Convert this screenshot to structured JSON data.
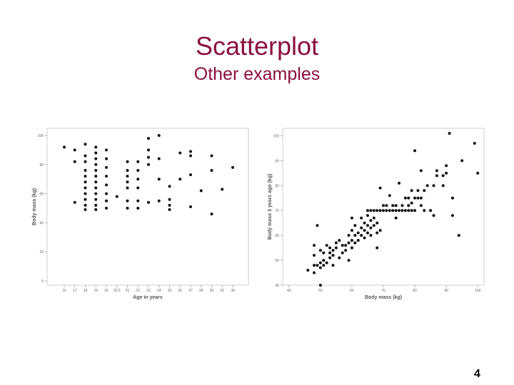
{
  "slide": {
    "title": "Scatterplot",
    "subtitle": "Other examples",
    "page_number": "4",
    "title_color": "#8b0f3e"
  },
  "chart_data": [
    {
      "type": "scatter",
      "title": "",
      "xlabel": "Age in years",
      "ylabel": "Body mass (kg)",
      "x_categories": [
        "16",
        "17",
        "18",
        "19",
        "20",
        "20.5",
        "21",
        "22",
        "23",
        "24",
        "25",
        "26",
        "27",
        "28",
        "30",
        "32",
        "38"
      ],
      "y_ticks": [
        "0",
        "20",
        "40",
        "60",
        "80",
        "100"
      ],
      "ylim": [
        0,
        100
      ],
      "grid": false,
      "points": [
        [
          "16",
          92
        ],
        [
          "17",
          90
        ],
        [
          "17",
          82
        ],
        [
          "17",
          54
        ],
        [
          "18",
          94
        ],
        [
          "18",
          86
        ],
        [
          "18",
          82
        ],
        [
          "18",
          76
        ],
        [
          "18",
          72
        ],
        [
          "18",
          68
        ],
        [
          "18",
          64
        ],
        [
          "18",
          60
        ],
        [
          "18",
          56
        ],
        [
          "18",
          52
        ],
        [
          "18",
          49
        ],
        [
          "19",
          92
        ],
        [
          "19",
          88
        ],
        [
          "19",
          84
        ],
        [
          "19",
          80
        ],
        [
          "19",
          76
        ],
        [
          "19",
          72
        ],
        [
          "19",
          68
        ],
        [
          "19",
          64
        ],
        [
          "19",
          60
        ],
        [
          "19",
          56
        ],
        [
          "19",
          52
        ],
        [
          "19",
          49
        ],
        [
          "20",
          90
        ],
        [
          "20",
          84
        ],
        [
          "20",
          78
        ],
        [
          "20",
          72
        ],
        [
          "20",
          66
        ],
        [
          "20",
          60
        ],
        [
          "20",
          55
        ],
        [
          "20",
          50
        ],
        [
          "20.5",
          58
        ],
        [
          "21",
          82
        ],
        [
          "21",
          76
        ],
        [
          "21",
          72
        ],
        [
          "21",
          68
        ],
        [
          "21",
          64
        ],
        [
          "21",
          55
        ],
        [
          "21",
          50
        ],
        [
          "22",
          82
        ],
        [
          "22",
          76
        ],
        [
          "22",
          70
        ],
        [
          "22",
          64
        ],
        [
          "22",
          55
        ],
        [
          "22",
          50
        ],
        [
          "23",
          98
        ],
        [
          "23",
          90
        ],
        [
          "23",
          85
        ],
        [
          "23",
          80
        ],
        [
          "23",
          54
        ],
        [
          "24",
          100
        ],
        [
          "24",
          84
        ],
        [
          "24",
          70
        ],
        [
          "24",
          55
        ],
        [
          "25",
          65
        ],
        [
          "25",
          56
        ],
        [
          "25",
          52
        ],
        [
          "25",
          49
        ],
        [
          "26",
          88
        ],
        [
          "26",
          70
        ],
        [
          "27",
          89
        ],
        [
          "27",
          86
        ],
        [
          "27",
          73
        ],
        [
          "27",
          51
        ],
        [
          "28",
          62
        ],
        [
          "30",
          86
        ],
        [
          "30",
          76
        ],
        [
          "30",
          46
        ],
        [
          "32",
          63
        ],
        [
          "38",
          78
        ]
      ]
    },
    {
      "type": "scatter",
      "title": "",
      "xlabel": "Body mass (kg)",
      "ylabel": "Body mass 3 years ago (kg)",
      "x_ticks": [
        "40",
        "50",
        "60",
        "70",
        "80",
        "90",
        "100"
      ],
      "y_ticks": [
        "40",
        "50",
        "60",
        "70",
        "80",
        "90",
        "100"
      ],
      "xlim": [
        38,
        102
      ],
      "ylim": [
        40,
        103
      ],
      "grid": false,
      "points": [
        [
          46,
          46
        ],
        [
          48,
          45
        ],
        [
          48,
          48
        ],
        [
          48,
          52
        ],
        [
          48,
          56
        ],
        [
          49,
          48
        ],
        [
          49,
          64
        ],
        [
          50,
          47
        ],
        [
          50,
          40
        ],
        [
          50,
          49
        ],
        [
          50,
          54
        ],
        [
          51,
          48
        ],
        [
          51,
          50
        ],
        [
          51,
          53
        ],
        [
          52,
          49
        ],
        [
          52,
          56
        ],
        [
          53,
          51
        ],
        [
          53,
          53
        ],
        [
          53,
          55
        ],
        [
          54,
          48
        ],
        [
          54,
          52
        ],
        [
          54,
          54
        ],
        [
          55,
          55
        ],
        [
          55,
          57
        ],
        [
          56,
          51
        ],
        [
          56,
          58
        ],
        [
          57,
          53
        ],
        [
          57,
          56
        ],
        [
          58,
          54
        ],
        [
          58,
          56
        ],
        [
          59,
          50
        ],
        [
          59,
          57
        ],
        [
          59,
          60
        ],
        [
          60,
          55
        ],
        [
          60,
          58
        ],
        [
          60,
          62
        ],
        [
          60,
          67
        ],
        [
          61,
          57
        ],
        [
          61,
          60
        ],
        [
          61,
          64
        ],
        [
          62,
          58
        ],
        [
          62,
          61
        ],
        [
          63,
          60
        ],
        [
          63,
          63
        ],
        [
          63,
          67
        ],
        [
          64,
          59
        ],
        [
          64,
          62
        ],
        [
          64,
          65
        ],
        [
          65,
          61
        ],
        [
          65,
          64
        ],
        [
          65,
          68
        ],
        [
          65,
          70
        ],
        [
          66,
          60
        ],
        [
          66,
          63
        ],
        [
          66,
          66
        ],
        [
          66,
          70
        ],
        [
          67,
          64
        ],
        [
          67,
          67
        ],
        [
          67,
          70
        ],
        [
          68,
          55
        ],
        [
          68,
          61
        ],
        [
          68,
          65
        ],
        [
          68,
          70
        ],
        [
          69,
          62
        ],
        [
          69,
          70
        ],
        [
          69,
          79
        ],
        [
          70,
          70
        ],
        [
          70,
          72
        ],
        [
          71,
          70
        ],
        [
          71,
          72
        ],
        [
          72,
          70
        ],
        [
          72,
          76
        ],
        [
          73,
          70
        ],
        [
          73,
          72
        ],
        [
          74,
          67
        ],
        [
          74,
          70
        ],
        [
          74,
          72
        ],
        [
          75,
          70
        ],
        [
          75,
          81
        ],
        [
          76,
          70
        ],
        [
          76,
          72
        ],
        [
          77,
          70
        ],
        [
          77,
          75
        ],
        [
          78,
          70
        ],
        [
          78,
          72
        ],
        [
          78,
          75
        ],
        [
          79,
          70
        ],
        [
          79,
          73
        ],
        [
          79,
          78
        ],
        [
          80,
          70
        ],
        [
          80,
          75
        ],
        [
          80,
          94
        ],
        [
          81,
          75
        ],
        [
          81,
          78
        ],
        [
          82,
          72
        ],
        [
          82,
          75
        ],
        [
          82,
          86
        ],
        [
          83,
          70
        ],
        [
          83,
          78
        ],
        [
          84,
          80
        ],
        [
          85,
          70
        ],
        [
          86,
          68
        ],
        [
          86,
          80
        ],
        [
          87,
          84
        ],
        [
          87,
          86
        ],
        [
          89,
          80
        ],
        [
          89,
          84
        ],
        [
          90,
          85
        ],
        [
          90,
          88
        ],
        [
          91,
          101
        ],
        [
          92,
          68
        ],
        [
          92,
          75
        ],
        [
          94,
          60
        ],
        [
          95,
          90
        ],
        [
          99,
          97
        ],
        [
          100,
          85
        ]
      ]
    }
  ]
}
